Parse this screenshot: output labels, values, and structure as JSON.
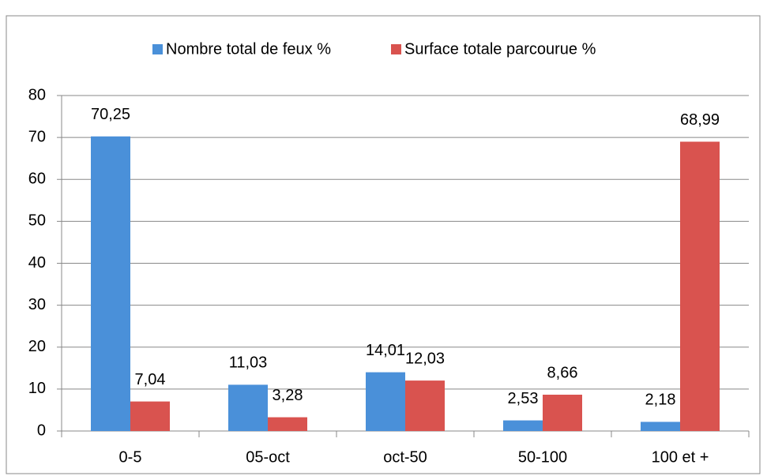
{
  "chart_data": {
    "type": "bar",
    "categories": [
      "0-5",
      "05-oct",
      "oct-50",
      "50-100",
      "100 et +"
    ],
    "series": [
      {
        "name": "Nombre total de feux %",
        "color": "#4a90d9",
        "values": [
          70.25,
          11.03,
          14.01,
          2.53,
          2.18
        ],
        "value_labels": [
          "70,25",
          "11,03",
          "14,01",
          "2,53",
          "2,18"
        ]
      },
      {
        "name": "Surface totale parcourue %",
        "color": "#d9534f",
        "values": [
          7.04,
          3.28,
          12.03,
          8.66,
          68.99
        ],
        "value_labels": [
          "7,04",
          "3,28",
          "12,03",
          "8,66",
          "68,99"
        ]
      }
    ],
    "ylim": [
      0,
      80
    ],
    "yticks": [
      0,
      10,
      20,
      30,
      40,
      50,
      60,
      70,
      80
    ],
    "grid": true,
    "legend": "top"
  }
}
